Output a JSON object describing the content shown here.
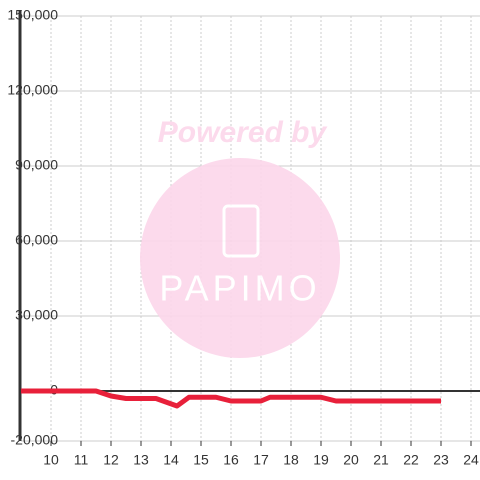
{
  "chart_data": {
    "type": "line",
    "x": [
      9,
      11.5,
      12,
      12.5,
      13.5,
      14.2,
      14.6,
      15.5,
      16,
      17,
      17.3,
      19,
      19.5,
      23
    ],
    "series": [
      {
        "color": "#e8203a",
        "values": [
          0,
          0,
          -2000,
          -3000,
          -3000,
          -6000,
          -2500,
          -2500,
          -4000,
          -4000,
          -2500,
          -2500,
          -4000,
          -4000
        ]
      }
    ],
    "xlim": [
      9,
      24.3
    ],
    "xticks": [
      10,
      11,
      12,
      13,
      14,
      15,
      16,
      17,
      18,
      19,
      20,
      21,
      22,
      23,
      24
    ],
    "ylim": [
      -20000,
      150000
    ],
    "yticks": [
      {
        "value": -20000,
        "label": "-20,000"
      },
      0,
      {
        "value": 30000,
        "label": "30,000"
      },
      {
        "value": 60000,
        "label": "60,000"
      },
      {
        "value": 90000,
        "label": "90,000"
      },
      {
        "value": 120000,
        "label": "120,000"
      },
      {
        "value": 150000,
        "label": "150,000"
      }
    ],
    "grid": true
  },
  "watermark": {
    "text": "Powered by",
    "logo": "PAPIMO"
  }
}
